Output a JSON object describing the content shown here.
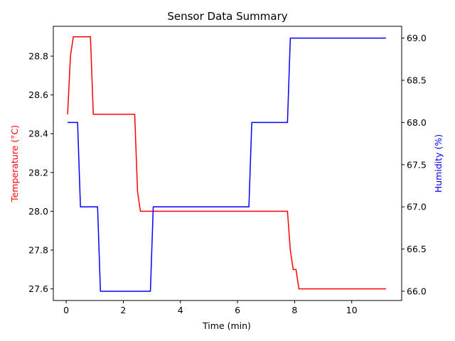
{
  "chart_data": {
    "type": "line",
    "title": "Sensor Data Summary",
    "xlabel": "Time (min)",
    "ylabel": "Temperature (°C)",
    "ylabel_right": "Humidity (%)",
    "xlim": [
      -0.45,
      11.75
    ],
    "ylim": [
      27.54,
      28.954
    ],
    "ylim_right": [
      65.89,
      69.14
    ],
    "x_ticks": [
      0,
      2,
      4,
      6,
      8,
      10
    ],
    "y_ticks": [
      27.6,
      27.8,
      28.0,
      28.2,
      28.4,
      28.6,
      28.8
    ],
    "y_ticks_right": [
      66.0,
      66.5,
      67.0,
      67.5,
      68.0,
      68.5,
      69.0
    ],
    "x_tick_labels": [
      "0",
      "2",
      "4",
      "6",
      "8",
      "10"
    ],
    "y_tick_labels": [
      "27.6",
      "27.8",
      "28.0",
      "28.2",
      "28.4",
      "28.6",
      "28.8"
    ],
    "y_tick_labels_right": [
      "66.0",
      "66.5",
      "67.0",
      "67.5",
      "68.0",
      "68.5",
      "69.0"
    ],
    "grid": false,
    "legend": "none",
    "series": [
      {
        "axis": "left",
        "color": "#ff0000",
        "x": [
          0.05,
          0.15,
          0.25,
          0.35,
          0.85,
          0.95,
          2.4,
          2.5,
          2.6,
          7.75,
          7.85,
          7.95,
          8.05,
          8.15,
          11.2
        ],
        "y": [
          28.5,
          28.8,
          28.9,
          28.9,
          28.9,
          28.5,
          28.5,
          28.1,
          28.0,
          28.0,
          27.8,
          27.7,
          27.7,
          27.6,
          27.6
        ]
      },
      {
        "axis": "right",
        "color": "#0000ff",
        "x": [
          0.05,
          0.4,
          0.5,
          1.1,
          1.2,
          2.95,
          3.05,
          6.4,
          6.5,
          7.75,
          7.85,
          11.2
        ],
        "y": [
          68.0,
          68.0,
          67.0,
          67.0,
          66.0,
          66.0,
          67.0,
          67.0,
          68.0,
          68.0,
          69.0,
          69.0
        ]
      }
    ]
  }
}
